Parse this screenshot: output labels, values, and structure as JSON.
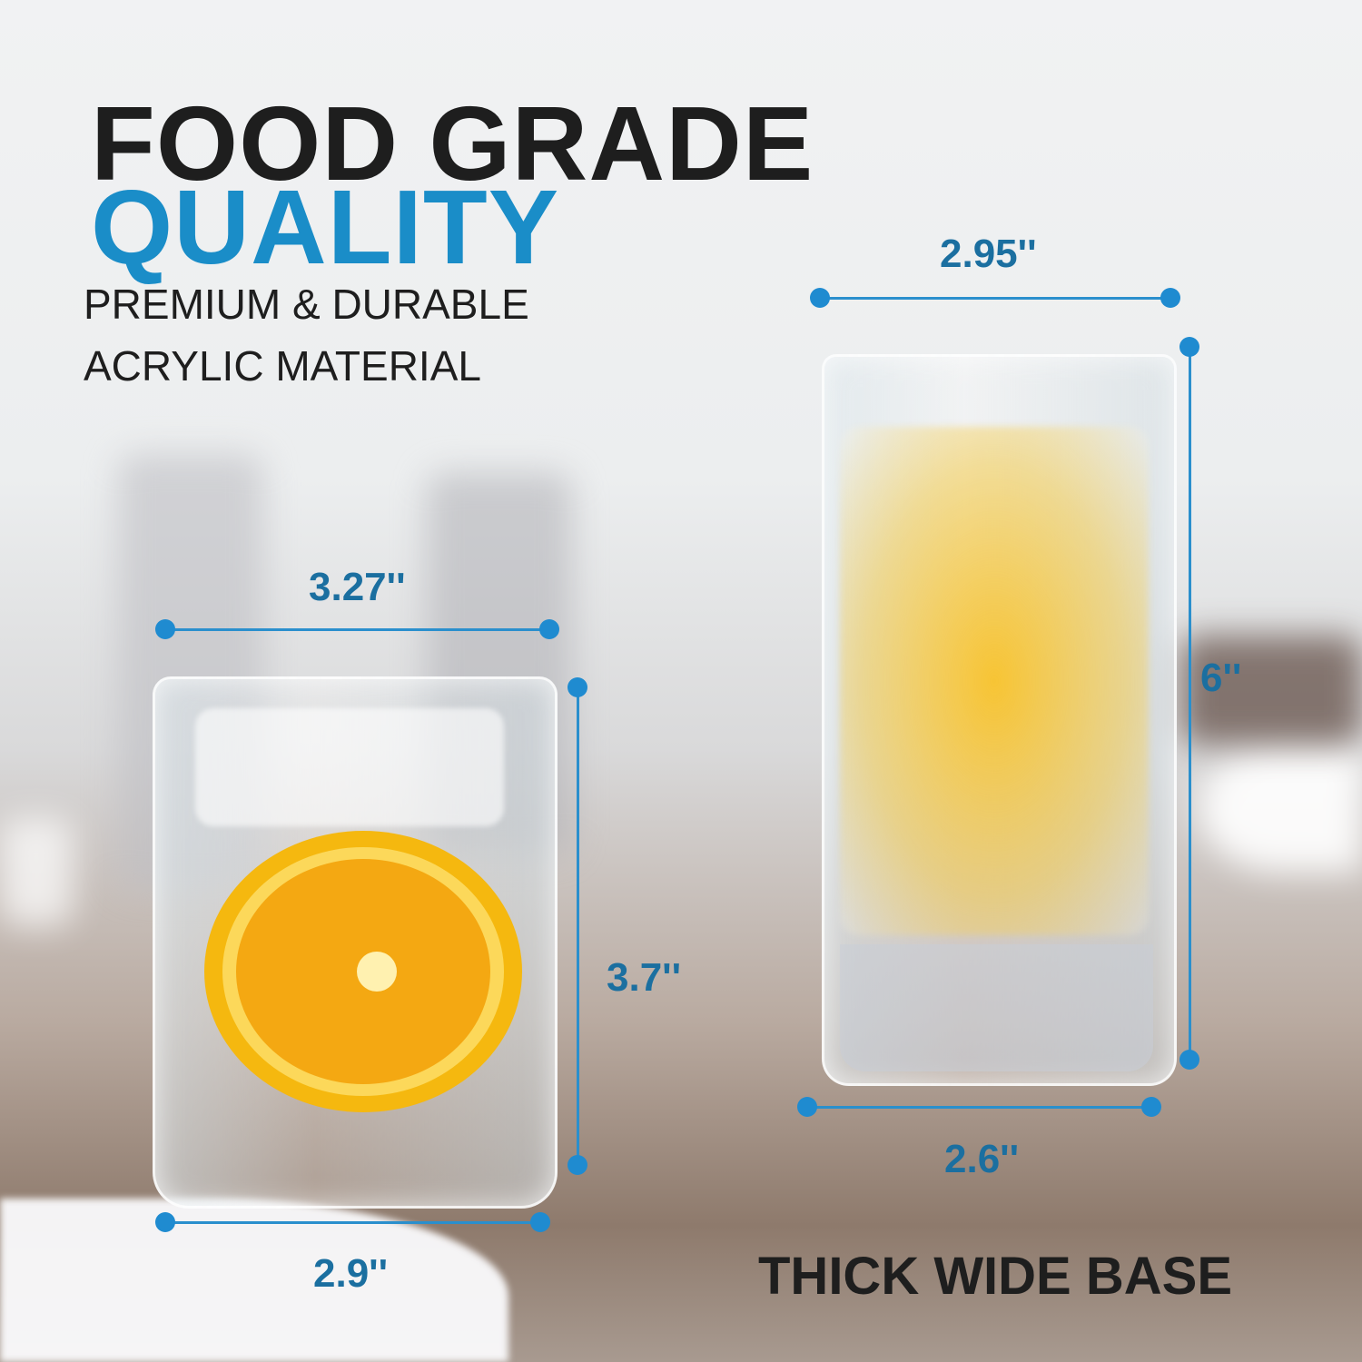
{
  "headline": {
    "line1": "FOOD GRADE",
    "line2": "QUALITY"
  },
  "subtitle": {
    "line1": "PREMIUM & DURABLE",
    "line2": "ACRYLIC MATERIAL"
  },
  "tall_glass": {
    "top_width": "2.95''",
    "height": "6''",
    "base_width": "2.6''"
  },
  "short_glass": {
    "top_width": "3.27''",
    "height": "3.7''",
    "base_width": "2.9''"
  },
  "caption": "THICK WIDE BASE",
  "colors": {
    "headline_dark": "#1e1e1e",
    "accent_blue": "#1a8dc8",
    "dimension_blue": "#1b6fa0"
  }
}
